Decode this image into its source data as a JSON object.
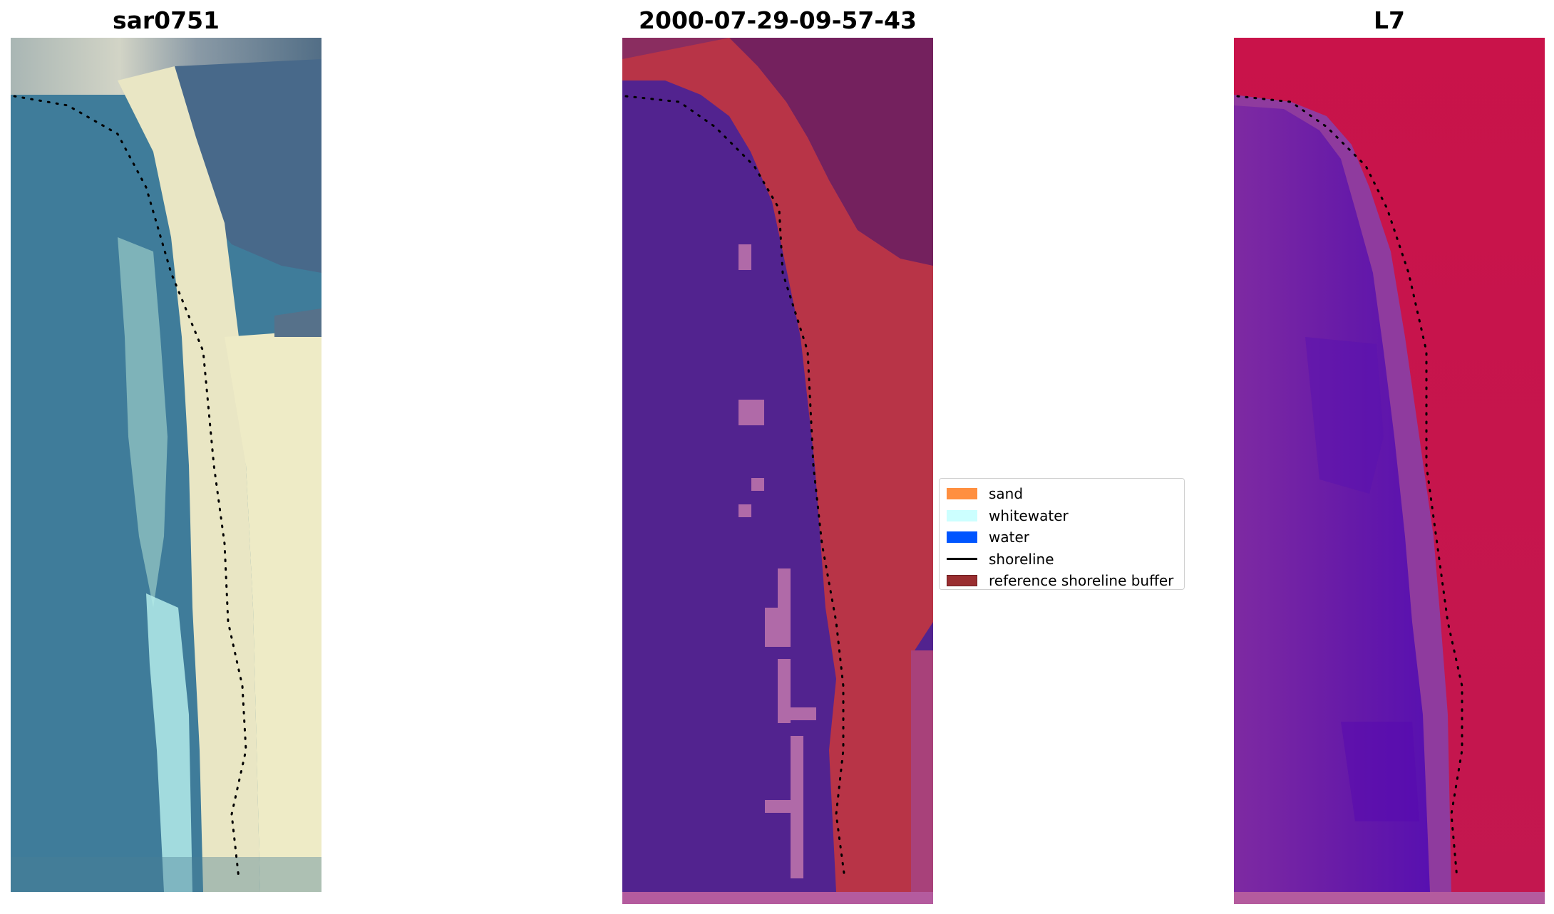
{
  "panels": [
    {
      "title": "sar0751"
    },
    {
      "title": "2000-07-29-09-57-43"
    },
    {
      "title": "L7"
    }
  ],
  "legend": {
    "items": [
      {
        "label": "sand",
        "color": "#ff8f40"
      },
      {
        "label": "whitewater",
        "color": "#ccffff"
      },
      {
        "label": "water",
        "color": "#0055ff"
      },
      {
        "label": "shoreline",
        "color": "#000000"
      },
      {
        "label": "reference shoreline buffer",
        "color": "#9a2e30"
      }
    ]
  },
  "colors": {
    "rgb_water": "#3e7a99",
    "rgb_sand": "#ece8c6",
    "rgb_bright_water": "#a8e4e4",
    "class_water": "#52238f",
    "class_buffer": "#b83447",
    "class_land": "#74215e",
    "class_noise": "#b06aa8",
    "ndwi_water": "#6c1ea3",
    "ndwi_land": "#c7164e",
    "bottom_strip": "#b45b9e"
  }
}
